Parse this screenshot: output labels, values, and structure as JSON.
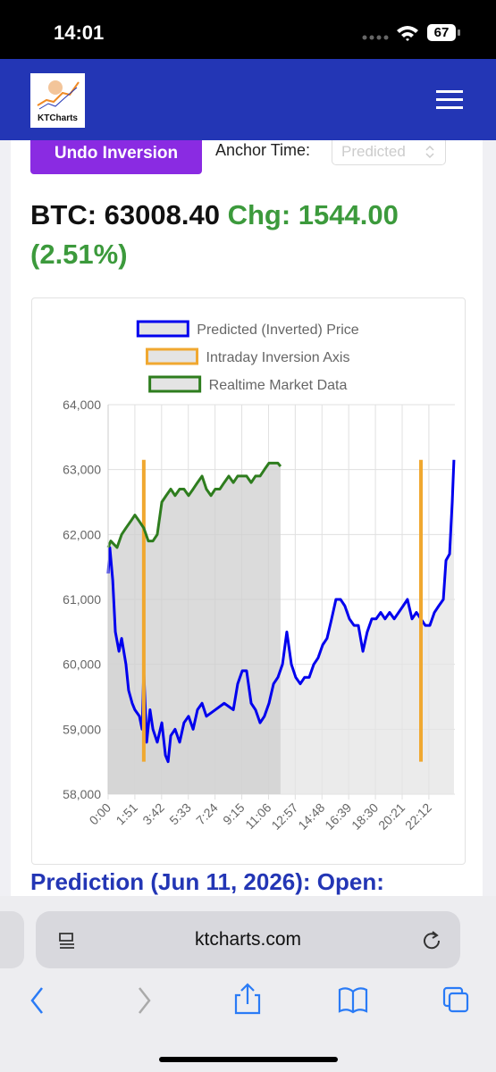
{
  "status_bar": {
    "time": "14:01",
    "battery": "67"
  },
  "header": {
    "logo_text": "KTCharts"
  },
  "controls": {
    "button": "Undo Inversion",
    "anchor_label": "Anchor Time:",
    "anchor_value": "Predicted"
  },
  "ticker": {
    "price": "BTC: 63008.40",
    "change": "Chg: 1544.00 (2.51%)"
  },
  "chart_data": {
    "type": "line",
    "legend": "top",
    "grid": true,
    "xlim": [
      0,
      1440
    ],
    "xticks": [
      {
        "value": 0,
        "label": "0:00"
      },
      {
        "value": 111,
        "label": "1:51"
      },
      {
        "value": 222,
        "label": "3:42"
      },
      {
        "value": 333,
        "label": "5:33"
      },
      {
        "value": 444,
        "label": "7:24"
      },
      {
        "value": 555,
        "label": "9:15"
      },
      {
        "value": 666,
        "label": "11:06"
      },
      {
        "value": 777,
        "label": "12:57"
      },
      {
        "value": 888,
        "label": "14:48"
      },
      {
        "value": 999,
        "label": "16:39"
      },
      {
        "value": 1110,
        "label": "18:30"
      },
      {
        "value": 1221,
        "label": "20:21"
      },
      {
        "value": 1332,
        "label": "22:12"
      }
    ],
    "ylim": [
      58000,
      64000
    ],
    "yticks": [
      {
        "value": 58000,
        "label": "58,000"
      },
      {
        "value": 59000,
        "label": "59,000"
      },
      {
        "value": 60000,
        "label": "60,000"
      },
      {
        "value": 61000,
        "label": "61,000"
      },
      {
        "value": 62000,
        "label": "62,000"
      },
      {
        "value": 63000,
        "label": "63,000"
      },
      {
        "value": 64000,
        "label": "64,000"
      }
    ],
    "series": [
      {
        "name": "Predicted (Inverted) Price",
        "color": "#0000ee",
        "fill_color": "#e4e4e4",
        "x": [
          0,
          7,
          19,
          30,
          45,
          56,
          74,
          85,
          100,
          111,
          130,
          141,
          148,
          160,
          174,
          186,
          204,
          223,
          238,
          249,
          260,
          278,
          297,
          315,
          334,
          353,
          371,
          390,
          408,
          445,
          482,
          520,
          538,
          557,
          575,
          594,
          612,
          631,
          649,
          668,
          687,
          705,
          724,
          742,
          761,
          779,
          798,
          816,
          835,
          854,
          872,
          891,
          909,
          928,
          946,
          965,
          983,
          1002,
          1021,
          1039,
          1058,
          1076,
          1095,
          1113,
          1132,
          1150,
          1169,
          1188,
          1225,
          1243,
          1262,
          1280,
          1299,
          1317,
          1336,
          1355,
          1373,
          1392,
          1403,
          1418,
          1429,
          1436
        ],
        "values": [
          61400,
          61800,
          61300,
          60500,
          60200,
          60400,
          60000,
          59600,
          59400,
          59300,
          59200,
          59000,
          59900,
          58800,
          59300,
          59000,
          58800,
          59100,
          58600,
          58500,
          58900,
          59000,
          58800,
          59100,
          59200,
          59000,
          59300,
          59400,
          59200,
          59300,
          59400,
          59300,
          59700,
          59900,
          59900,
          59400,
          59300,
          59100,
          59200,
          59400,
          59700,
          59800,
          60000,
          60500,
          60000,
          59800,
          59700,
          59800,
          59800,
          60000,
          60100,
          60300,
          60400,
          60700,
          61000,
          61000,
          60900,
          60700,
          60600,
          60600,
          60200,
          60500,
          60700,
          60700,
          60800,
          60700,
          60800,
          60700,
          60900,
          61000,
          60700,
          60800,
          60700,
          60600,
          60600,
          60800,
          60900,
          61000,
          61600,
          61700,
          62500,
          63150
        ]
      },
      {
        "name": "Intraday Inversion Axis",
        "color": "#f0a830",
        "x": [
          148,
          148,
          null,
          1299,
          1299
        ],
        "values": [
          63150,
          58500,
          null,
          63150,
          58500
        ]
      },
      {
        "name": "Realtime Market Data",
        "color": "#2e7d1e",
        "fill_color": "#cfcfcf",
        "x": [
          0,
          11,
          37,
          56,
          74,
          93,
          111,
          130,
          148,
          167,
          186,
          204,
          223,
          241,
          260,
          278,
          297,
          315,
          334,
          353,
          371,
          390,
          408,
          427,
          445,
          464,
          482,
          501,
          520,
          538,
          557,
          575,
          594,
          612,
          631,
          649,
          668,
          687,
          705,
          716
        ],
        "values": [
          61800,
          61900,
          61800,
          62000,
          62100,
          62200,
          62300,
          62200,
          62100,
          61900,
          61900,
          62000,
          62500,
          62600,
          62700,
          62600,
          62700,
          62700,
          62600,
          62700,
          62800,
          62900,
          62700,
          62600,
          62700,
          62700,
          62800,
          62900,
          62800,
          62900,
          62900,
          62900,
          62800,
          62900,
          62900,
          63000,
          63100,
          63100,
          63100,
          63050
        ]
      }
    ]
  },
  "prediction_heading": "Prediction (Jun 11, 2026): Open:",
  "browser": {
    "url": "ktcharts.com"
  }
}
